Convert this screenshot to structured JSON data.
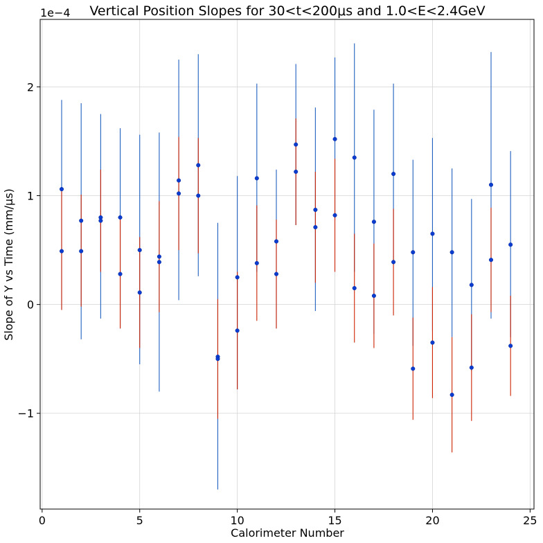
{
  "chart_data": {
    "type": "scatter",
    "title": "Vertical Position Slopes for 30<t<200μs and 1.0<E<2.4GeV",
    "xlabel": "Calorimeter Number",
    "ylabel": "Slope of Y vs Time (mm/μs)",
    "y_exponent_label": "1e−4",
    "y_scale_factor": 0.0001,
    "xlim": [
      -0.1,
      25.2
    ],
    "ylim": [
      -1.88,
      2.62
    ],
    "x_ticks": [
      0,
      5,
      10,
      15,
      20,
      25
    ],
    "y_ticks": [
      -1,
      0,
      1,
      2
    ],
    "grid": true,
    "series": [
      {
        "color": "#1f5fbf",
        "marker_color": "#0a3ccf",
        "points": [
          {
            "x": 1,
            "y": 1.06,
            "lo": -0.05,
            "hi": 1.88
          },
          {
            "x": 2,
            "y": 0.77,
            "lo": -0.32,
            "hi": 1.85
          },
          {
            "x": 3,
            "y": 0.8,
            "lo": -0.13,
            "hi": 1.75
          },
          {
            "x": 4,
            "y": 0.8,
            "lo": -0.22,
            "hi": 1.62
          },
          {
            "x": 5,
            "y": 0.5,
            "lo": -0.55,
            "hi": 1.56
          },
          {
            "x": 6,
            "y": 0.39,
            "lo": -0.8,
            "hi": 1.58
          },
          {
            "x": 7,
            "y": 1.14,
            "lo": 0.04,
            "hi": 2.25
          },
          {
            "x": 8,
            "y": 1.28,
            "lo": 0.26,
            "hi": 2.3
          },
          {
            "x": 9,
            "y": -0.48,
            "lo": -1.7,
            "hi": 0.75
          },
          {
            "x": 10,
            "y": 0.25,
            "lo": -0.78,
            "hi": 1.18
          },
          {
            "x": 11,
            "y": 1.16,
            "lo": 0.3,
            "hi": 2.03
          },
          {
            "x": 12,
            "y": 0.58,
            "lo": -0.22,
            "hi": 1.24
          },
          {
            "x": 13,
            "y": 1.47,
            "lo": 0.73,
            "hi": 2.21
          },
          {
            "x": 14,
            "y": 0.87,
            "lo": -0.06,
            "hi": 1.81
          },
          {
            "x": 15,
            "y": 1.52,
            "lo": 0.78,
            "hi": 2.27
          },
          {
            "x": 16,
            "y": 1.35,
            "lo": 0.3,
            "hi": 2.4
          },
          {
            "x": 17,
            "y": 0.76,
            "lo": -0.27,
            "hi": 1.79
          },
          {
            "x": 18,
            "y": 1.2,
            "lo": 0.37,
            "hi": 2.03
          },
          {
            "x": 19,
            "y": 0.48,
            "lo": -0.38,
            "hi": 1.33
          },
          {
            "x": 20,
            "y": 0.65,
            "lo": -0.24,
            "hi": 1.53
          },
          {
            "x": 21,
            "y": 0.48,
            "lo": -0.3,
            "hi": 1.25
          },
          {
            "x": 22,
            "y": 0.18,
            "lo": -0.61,
            "hi": 0.97
          },
          {
            "x": 23,
            "y": 1.1,
            "lo": -0.13,
            "hi": 2.32
          },
          {
            "x": 24,
            "y": 0.55,
            "lo": -0.3,
            "hi": 1.41
          }
        ]
      },
      {
        "color": "#cc2200",
        "marker_color": "#0a3ccf",
        "points": [
          {
            "x": 1,
            "y": 0.49,
            "lo": -0.05,
            "hi": 1.04
          },
          {
            "x": 2,
            "y": 0.49,
            "lo": -0.02,
            "hi": 1.01
          },
          {
            "x": 3,
            "y": 0.77,
            "lo": 0.3,
            "hi": 1.24
          },
          {
            "x": 4,
            "y": 0.28,
            "lo": -0.22,
            "hi": 0.78
          },
          {
            "x": 5,
            "y": 0.11,
            "lo": -0.4,
            "hi": 0.62
          },
          {
            "x": 6,
            "y": 0.44,
            "lo": -0.07,
            "hi": 0.95
          },
          {
            "x": 7,
            "y": 1.02,
            "lo": 0.5,
            "hi": 1.54
          },
          {
            "x": 8,
            "y": 1.0,
            "lo": 0.47,
            "hi": 1.53
          },
          {
            "x": 9,
            "y": -0.5,
            "lo": -1.05,
            "hi": 0.05
          },
          {
            "x": 10,
            "y": -0.24,
            "lo": -0.78,
            "hi": 0.3
          },
          {
            "x": 11,
            "y": 0.38,
            "lo": -0.15,
            "hi": 0.91
          },
          {
            "x": 12,
            "y": 0.28,
            "lo": -0.22,
            "hi": 0.78
          },
          {
            "x": 13,
            "y": 1.22,
            "lo": 0.73,
            "hi": 1.71
          },
          {
            "x": 14,
            "y": 0.71,
            "lo": 0.2,
            "hi": 1.22
          },
          {
            "x": 15,
            "y": 0.82,
            "lo": 0.3,
            "hi": 1.34
          },
          {
            "x": 16,
            "y": 0.15,
            "lo": -0.35,
            "hi": 0.65
          },
          {
            "x": 17,
            "y": 0.08,
            "lo": -0.4,
            "hi": 0.56
          },
          {
            "x": 18,
            "y": 0.39,
            "lo": -0.1,
            "hi": 0.88
          },
          {
            "x": 19,
            "y": -0.59,
            "lo": -1.06,
            "hi": -0.12
          },
          {
            "x": 20,
            "y": -0.35,
            "lo": -0.86,
            "hi": 0.16
          },
          {
            "x": 21,
            "y": -0.83,
            "lo": -1.36,
            "hi": -0.3
          },
          {
            "x": 22,
            "y": -0.58,
            "lo": -1.07,
            "hi": -0.09
          },
          {
            "x": 23,
            "y": 0.41,
            "lo": -0.07,
            "hi": 0.89
          },
          {
            "x": 24,
            "y": -0.38,
            "lo": -0.84,
            "hi": 0.08
          }
        ]
      }
    ]
  }
}
